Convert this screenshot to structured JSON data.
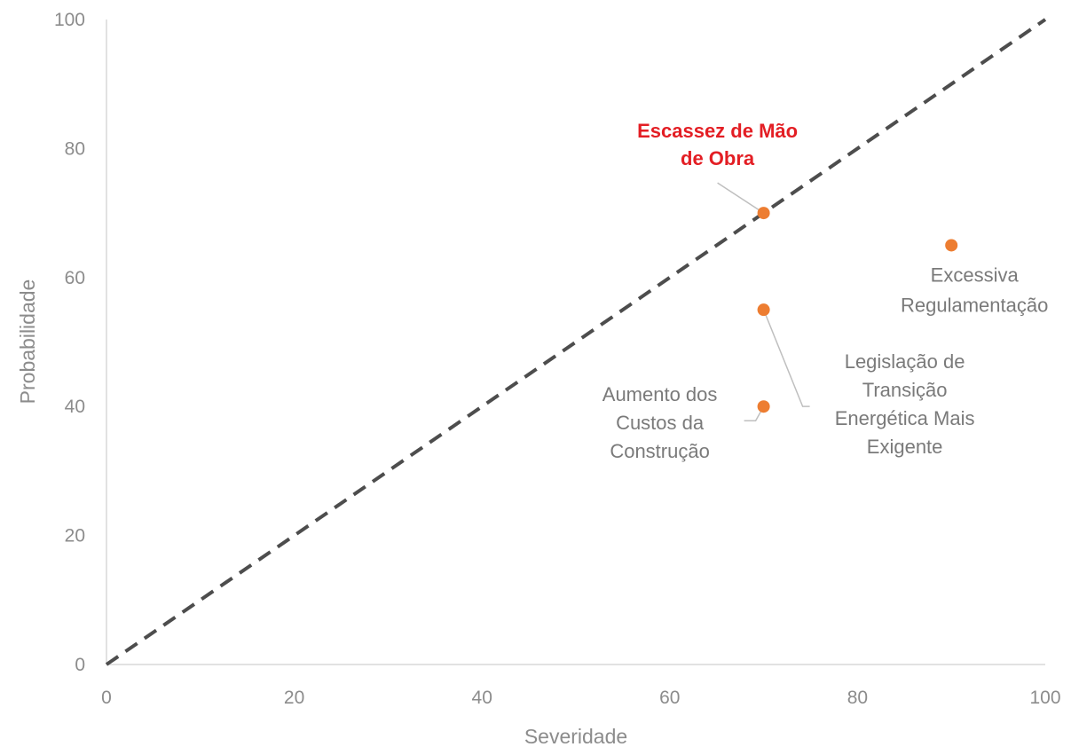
{
  "chart_data": {
    "type": "scatter",
    "xlabel": "Severidade",
    "ylabel": "Probabilidade",
    "xlim": [
      0,
      100
    ],
    "ylim": [
      0,
      100
    ],
    "xticks": [
      0,
      20,
      40,
      60,
      80,
      100
    ],
    "yticks": [
      0,
      20,
      40,
      60,
      80,
      100
    ],
    "grid": false,
    "marker_color": "#ed7d31",
    "highlight_color": "#e31e24",
    "reference_line": {
      "style": "dashed",
      "from": [
        0,
        0
      ],
      "to": [
        100,
        100
      ],
      "color": "#4d4d4d"
    },
    "points": [
      {
        "x": 70,
        "y": 70,
        "label": [
          "Escassez de Mão",
          "de Obra"
        ],
        "highlight": true
      },
      {
        "x": 90,
        "y": 65,
        "label": [
          "Excessiva",
          "Regulamentação"
        ],
        "highlight": false
      },
      {
        "x": 70,
        "y": 55,
        "label": [
          "Legislação de",
          "Transição",
          "Energética Mais",
          "Exigente"
        ],
        "highlight": false
      },
      {
        "x": 70,
        "y": 40,
        "label": [
          "Aumento dos",
          "Custos da",
          "Construção"
        ],
        "highlight": false
      }
    ]
  }
}
